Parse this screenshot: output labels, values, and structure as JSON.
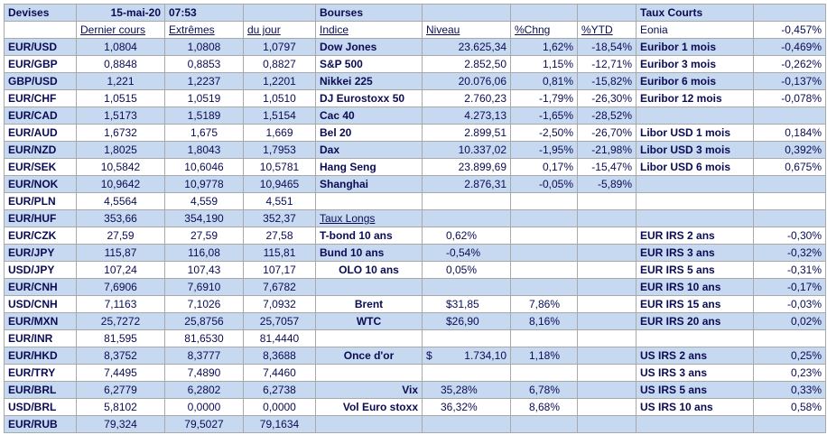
{
  "table": {
    "rows": [
      [
        "Devises",
        "15-mai-20",
        "07:53",
        null,
        "Bourses",
        null,
        null,
        null,
        "Taux Courts",
        null
      ],
      [
        null,
        "Dernier cours",
        "Extrêmes",
        "du jour",
        "Indice",
        "Niveau",
        "%Chng",
        "%YTD",
        "Eonia",
        "-0,457%"
      ],
      [
        "EUR/USD",
        "1,0804",
        "1,0808",
        "1,0797",
        "Dow Jones",
        "23.625,34",
        "1,62%",
        "-18,54%",
        "Euribor 1 mois",
        "-0,469%"
      ],
      [
        "EUR/GBP",
        "0,8848",
        "0,8853",
        "0,8827",
        "S&P 500",
        "2.852,50",
        "1,15%",
        "-12,71%",
        "Euribor 3 mois",
        "-0,262%"
      ],
      [
        "GBP/USD",
        "1,221",
        "1,2237",
        "1,2201",
        "Nikkei 225",
        "20.076,06",
        "0,81%",
        "-15,82%",
        "Euribor 6 mois",
        "-0,137%"
      ],
      [
        "EUR/CHF",
        "1,0515",
        "1,0519",
        "1,0510",
        "DJ Eurostoxx 50",
        "2.760,23",
        "-1,79%",
        "-26,30%",
        "Euribor 12 mois",
        "-0,078%"
      ],
      [
        "EUR/CAD",
        "1,5173",
        "1,5189",
        "1,5154",
        "Cac 40",
        "4.273,13",
        "-1,65%",
        "-28,52%",
        null,
        null
      ],
      [
        "EUR/AUD",
        "1,6732",
        "1,675",
        "1,669",
        "Bel 20",
        "2.899,51",
        "-2,50%",
        "-26,70%",
        "Libor USD 1 mois",
        "0,184%"
      ],
      [
        "EUR/NZD",
        "1,8025",
        "1,8043",
        "1,7953",
        "Dax",
        "10.337,02",
        "-1,95%",
        "-21,98%",
        "Libor USD 3 mois",
        "0,392%"
      ],
      [
        "EUR/SEK",
        "10,5842",
        "10,6046",
        "10,5781",
        "Hang Seng",
        "23.899,69",
        "0,17%",
        "-15,47%",
        "Libor USD 6 mois",
        "0,675%"
      ],
      [
        "EUR/NOK",
        "10,9642",
        "10,9778",
        "10,9465",
        "Shanghai",
        "2.876,31",
        "-0,05%",
        "-5,89%",
        null,
        null
      ],
      [
        "EUR/PLN",
        "4,5564",
        "4,559",
        "4,551",
        null,
        null,
        null,
        null,
        null,
        null
      ],
      [
        "EUR/HUF",
        "353,66",
        "354,190",
        "352,37",
        "Taux Longs",
        null,
        null,
        null,
        null,
        null
      ],
      [
        "EUR/CZK",
        "27,59",
        "27,59",
        "27,58",
        "T-bond 10 ans",
        "0,62%",
        null,
        null,
        "EUR IRS 2 ans",
        "-0,30%"
      ],
      [
        "EUR/JPY",
        "115,87",
        "116,08",
        "115,81",
        "Bund 10 ans",
        "-0,54%",
        null,
        null,
        "EUR IRS 3 ans",
        "-0,32%"
      ],
      [
        "USD/JPY",
        "107,24",
        "107,43",
        "107,17",
        "OLO 10 ans",
        "0,05%",
        null,
        null,
        "EUR IRS 5 ans",
        "-0,31%"
      ],
      [
        "EUR/CNH",
        "7,6906",
        "7,6910",
        "7,6782",
        null,
        null,
        null,
        null,
        "EUR IRS 10 ans",
        "-0,17%"
      ],
      [
        "USD/CNH",
        "7,1163",
        "7,1026",
        "7,0932",
        "Brent",
        "$31,85",
        "7,86%",
        null,
        "EUR IRS 15 ans",
        "-0,03%"
      ],
      [
        "EUR/MXN",
        "25,7272",
        "25,8756",
        "25,7057",
        "WTC",
        "$26,90",
        "8,16%",
        null,
        "EUR IRS 20 ans",
        "0,02%"
      ],
      [
        "EUR/INR",
        "81,595",
        "81,6530",
        "81,4440",
        null,
        null,
        null,
        null,
        null,
        null
      ],
      [
        "EUR/HKD",
        "8,3752",
        "8,3777",
        "8,3688",
        "Once d'or",
        {
          "currency": "$",
          "value": "1.734,10"
        },
        "1,18%",
        null,
        "US IRS 2 ans",
        "0,25%"
      ],
      [
        "EUR/TRY",
        "7,4495",
        "7,4890",
        "7,4460",
        null,
        null,
        null,
        null,
        "US IRS 3 ans",
        "0,23%"
      ],
      [
        "EUR/BRL",
        "6,2779",
        "6,2802",
        "6,2738",
        "Vix",
        "35,28%",
        "6,78%",
        null,
        "US IRS 5 ans",
        "0,33%"
      ],
      [
        "USD/BRL",
        "5,8102",
        "0,0000",
        "0,0000",
        "Vol Euro stoxx",
        "36,32%",
        "8,68%",
        null,
        "US IRS 10 ans",
        "0,58%"
      ],
      [
        "EUR/RUB",
        "79,324",
        "79,5027",
        "79,1634",
        null,
        null,
        null,
        null,
        null,
        null
      ]
    ]
  }
}
